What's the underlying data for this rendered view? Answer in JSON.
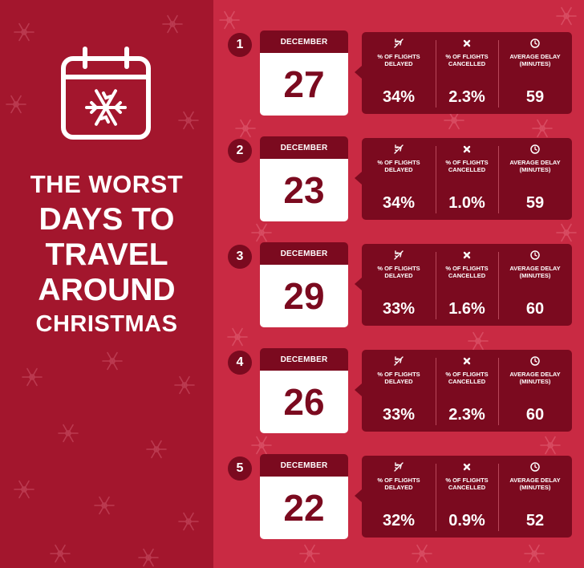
{
  "title": {
    "line1": "THE WORST",
    "line2": "DAYS TO",
    "line3": "TRAVEL",
    "line4": "AROUND",
    "line5": "CHRISTMAS"
  },
  "stat_labels": {
    "delayed": "% OF FLIGHTS\nDELAYED",
    "cancelled": "% OF FLIGHTS\nCANCELLED",
    "avg_delay": "AVERAGE DELAY\n(MINUTES)"
  },
  "colors": {
    "left_bg": "#a3162d",
    "right_bg": "#c92a43",
    "dark": "#7b0a1f",
    "text": "#ffffff"
  },
  "rows": [
    {
      "rank": "1",
      "month": "DECEMBER",
      "day": "27",
      "delayed": "34%",
      "cancelled": "2.3%",
      "avg_delay": "59"
    },
    {
      "rank": "2",
      "month": "DECEMBER",
      "day": "23",
      "delayed": "34%",
      "cancelled": "1.0%",
      "avg_delay": "59"
    },
    {
      "rank": "3",
      "month": "DECEMBER",
      "day": "29",
      "delayed": "33%",
      "cancelled": "1.6%",
      "avg_delay": "60"
    },
    {
      "rank": "4",
      "month": "DECEMBER",
      "day": "26",
      "delayed": "33%",
      "cancelled": "2.3%",
      "avg_delay": "60"
    },
    {
      "rank": "5",
      "month": "DECEMBER",
      "day": "22",
      "delayed": "32%",
      "cancelled": "0.9%",
      "avg_delay": "52"
    }
  ]
}
